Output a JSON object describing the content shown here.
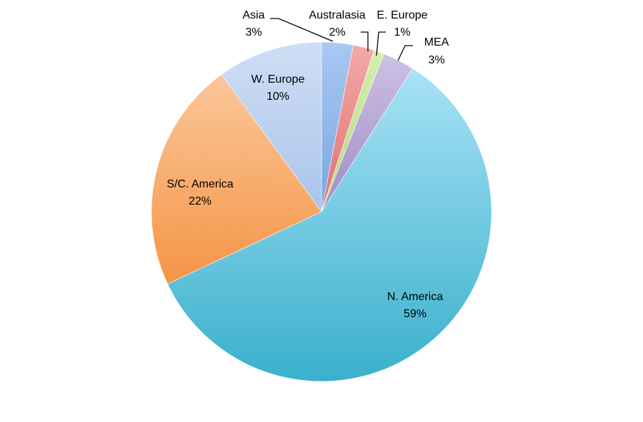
{
  "chart_data": {
    "type": "pie",
    "title": "",
    "start_angle_deg": 0,
    "direction": "clockwise",
    "legend": "none",
    "slices": [
      {
        "label": "Asia",
        "value": 3,
        "display": "3%",
        "color_light": "#a9c8f2",
        "color_dark": "#7aa6e2"
      },
      {
        "label": "Australasia",
        "value": 2,
        "display": "2%",
        "color_light": "#f4a8a8",
        "color_dark": "#e07070"
      },
      {
        "label": "E. Europe",
        "value": 1,
        "display": "1%",
        "color_light": "#d6eeae",
        "color_dark": "#b2d880"
      },
      {
        "label": "MEA",
        "value": 3,
        "display": "3%",
        "color_light": "#cdc0e4",
        "color_dark": "#9f8cc6"
      },
      {
        "label": "N. America",
        "value": 59,
        "display": "59%",
        "color_light": "#a8e2f6",
        "color_dark": "#3ab0cc"
      },
      {
        "label": "S/C. America",
        "value": 22,
        "display": "22%",
        "color_light": "#fbc79a",
        "color_dark": "#f59446"
      },
      {
        "label": "W. Europe",
        "value": 10,
        "display": "10%",
        "color_light": "#cfdef5",
        "color_dark": "#a9c4ea"
      }
    ]
  }
}
